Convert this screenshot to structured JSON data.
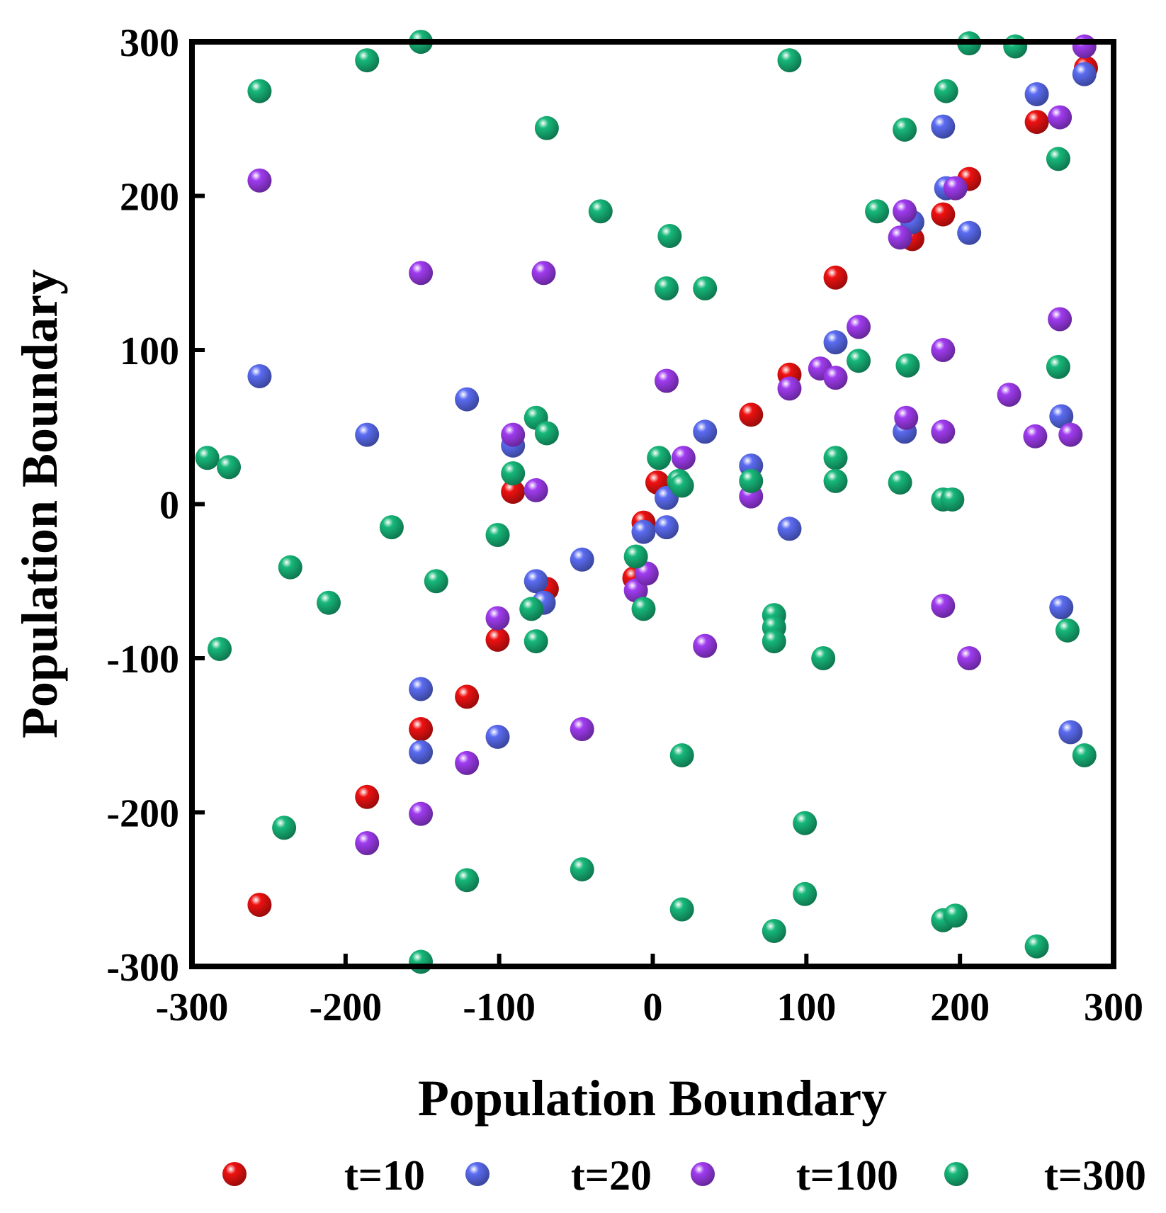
{
  "chart_data": {
    "type": "scatter",
    "title": "",
    "xlabel": "Population Boundary",
    "ylabel": "Population Boundary",
    "xlim": [
      -300,
      300
    ],
    "ylim": [
      -300,
      300
    ],
    "xticks": [
      -300,
      -200,
      -100,
      0,
      100,
      200,
      300
    ],
    "yticks": [
      -300,
      -200,
      -100,
      0,
      100,
      200,
      300
    ],
    "xtick_labels": [
      "-300",
      "-200",
      "-100",
      "0",
      "100",
      "200",
      "300"
    ],
    "ytick_labels": [
      "-300",
      "-200",
      "-100",
      "0",
      "100",
      "200",
      "300"
    ],
    "grid": false,
    "legend_position": "bottom",
    "series": [
      {
        "name": "t=10",
        "color": "#ee1111",
        "points": [
          [
            -256,
            -260
          ],
          [
            -186,
            -190
          ],
          [
            -151,
            -146
          ],
          [
            -121,
            -125
          ],
          [
            -101,
            -88
          ],
          [
            -91,
            8
          ],
          [
            -69,
            -55
          ],
          [
            -6,
            -12
          ],
          [
            -12,
            -48
          ],
          [
            3,
            14
          ],
          [
            64,
            58
          ],
          [
            89,
            84
          ],
          [
            119,
            147
          ],
          [
            169,
            172
          ],
          [
            189,
            188
          ],
          [
            206,
            211
          ],
          [
            250,
            248
          ],
          [
            282,
            283
          ]
        ]
      },
      {
        "name": "t=20",
        "color": "#5b6cf2",
        "points": [
          [
            -256,
            83
          ],
          [
            -186,
            45
          ],
          [
            -151,
            -120
          ],
          [
            -151,
            -161
          ],
          [
            -121,
            68
          ],
          [
            -101,
            -151
          ],
          [
            -91,
            38
          ],
          [
            -76,
            -50
          ],
          [
            -71,
            -64
          ],
          [
            -46,
            -36
          ],
          [
            -6,
            -18
          ],
          [
            9,
            4
          ],
          [
            9,
            -15
          ],
          [
            34,
            47
          ],
          [
            64,
            25
          ],
          [
            89,
            -16
          ],
          [
            119,
            105
          ],
          [
            164,
            47
          ],
          [
            169,
            183
          ],
          [
            189,
            245
          ],
          [
            191,
            205
          ],
          [
            206,
            176
          ],
          [
            250,
            266
          ],
          [
            266,
            -67
          ],
          [
            266,
            57
          ],
          [
            272,
            -148
          ],
          [
            281,
            279
          ]
        ]
      },
      {
        "name": "t=100",
        "color": "#a03cf0",
        "points": [
          [
            -256,
            210
          ],
          [
            -186,
            -220
          ],
          [
            -151,
            -201
          ],
          [
            -151,
            150
          ],
          [
            -121,
            -168
          ],
          [
            -101,
            -74
          ],
          [
            -91,
            45
          ],
          [
            -76,
            9
          ],
          [
            -71,
            150
          ],
          [
            -46,
            -146
          ],
          [
            -11,
            -56
          ],
          [
            -4,
            -45
          ],
          [
            9,
            80
          ],
          [
            20,
            30
          ],
          [
            34,
            -92
          ],
          [
            64,
            5
          ],
          [
            89,
            75
          ],
          [
            109,
            88
          ],
          [
            119,
            82
          ],
          [
            134,
            115
          ],
          [
            161,
            173
          ],
          [
            164,
            190
          ],
          [
            165,
            56
          ],
          [
            189,
            100
          ],
          [
            189,
            47
          ],
          [
            189,
            -66
          ],
          [
            197,
            205
          ],
          [
            206,
            -100
          ],
          [
            232,
            71
          ],
          [
            249,
            44
          ],
          [
            265,
            120
          ],
          [
            265,
            251
          ],
          [
            272,
            45
          ],
          [
            281,
            297
          ]
        ]
      },
      {
        "name": "t=300",
        "color": "#17b87a",
        "points": [
          [
            -290,
            30
          ],
          [
            -276,
            24
          ],
          [
            -282,
            -94
          ],
          [
            -256,
            268
          ],
          [
            -236,
            -41
          ],
          [
            -240,
            -210
          ],
          [
            -211,
            -64
          ],
          [
            -186,
            288
          ],
          [
            -170,
            -15
          ],
          [
            -151,
            300
          ],
          [
            -141,
            -50
          ],
          [
            -151,
            -297
          ],
          [
            -121,
            -244
          ],
          [
            -101,
            -20
          ],
          [
            -91,
            20
          ],
          [
            -79,
            -68
          ],
          [
            -76,
            -89
          ],
          [
            -76,
            56
          ],
          [
            -69,
            46
          ],
          [
            -69,
            244
          ],
          [
            -46,
            -237
          ],
          [
            -34,
            190
          ],
          [
            -11,
            -34
          ],
          [
            -6,
            -68
          ],
          [
            4,
            30
          ],
          [
            9,
            140
          ],
          [
            11,
            174
          ],
          [
            17,
            15
          ],
          [
            19,
            12
          ],
          [
            19,
            -163
          ],
          [
            19,
            -263
          ],
          [
            34,
            140
          ],
          [
            64,
            15
          ],
          [
            79,
            -72
          ],
          [
            79,
            -80
          ],
          [
            79,
            -89
          ],
          [
            79,
            -277
          ],
          [
            89,
            288
          ],
          [
            99,
            -207
          ],
          [
            99,
            -253
          ],
          [
            111,
            -100
          ],
          [
            119,
            30
          ],
          [
            119,
            15
          ],
          [
            134,
            93
          ],
          [
            146,
            190
          ],
          [
            161,
            14
          ],
          [
            164,
            243
          ],
          [
            166,
            90
          ],
          [
            189,
            3
          ],
          [
            191,
            268
          ],
          [
            189,
            -270
          ],
          [
            195,
            3
          ],
          [
            197,
            -267
          ],
          [
            206,
            299
          ],
          [
            236,
            297
          ],
          [
            250,
            -287
          ],
          [
            264,
            224
          ],
          [
            264,
            89
          ],
          [
            270,
            -82
          ],
          [
            281,
            -163
          ]
        ]
      }
    ]
  }
}
